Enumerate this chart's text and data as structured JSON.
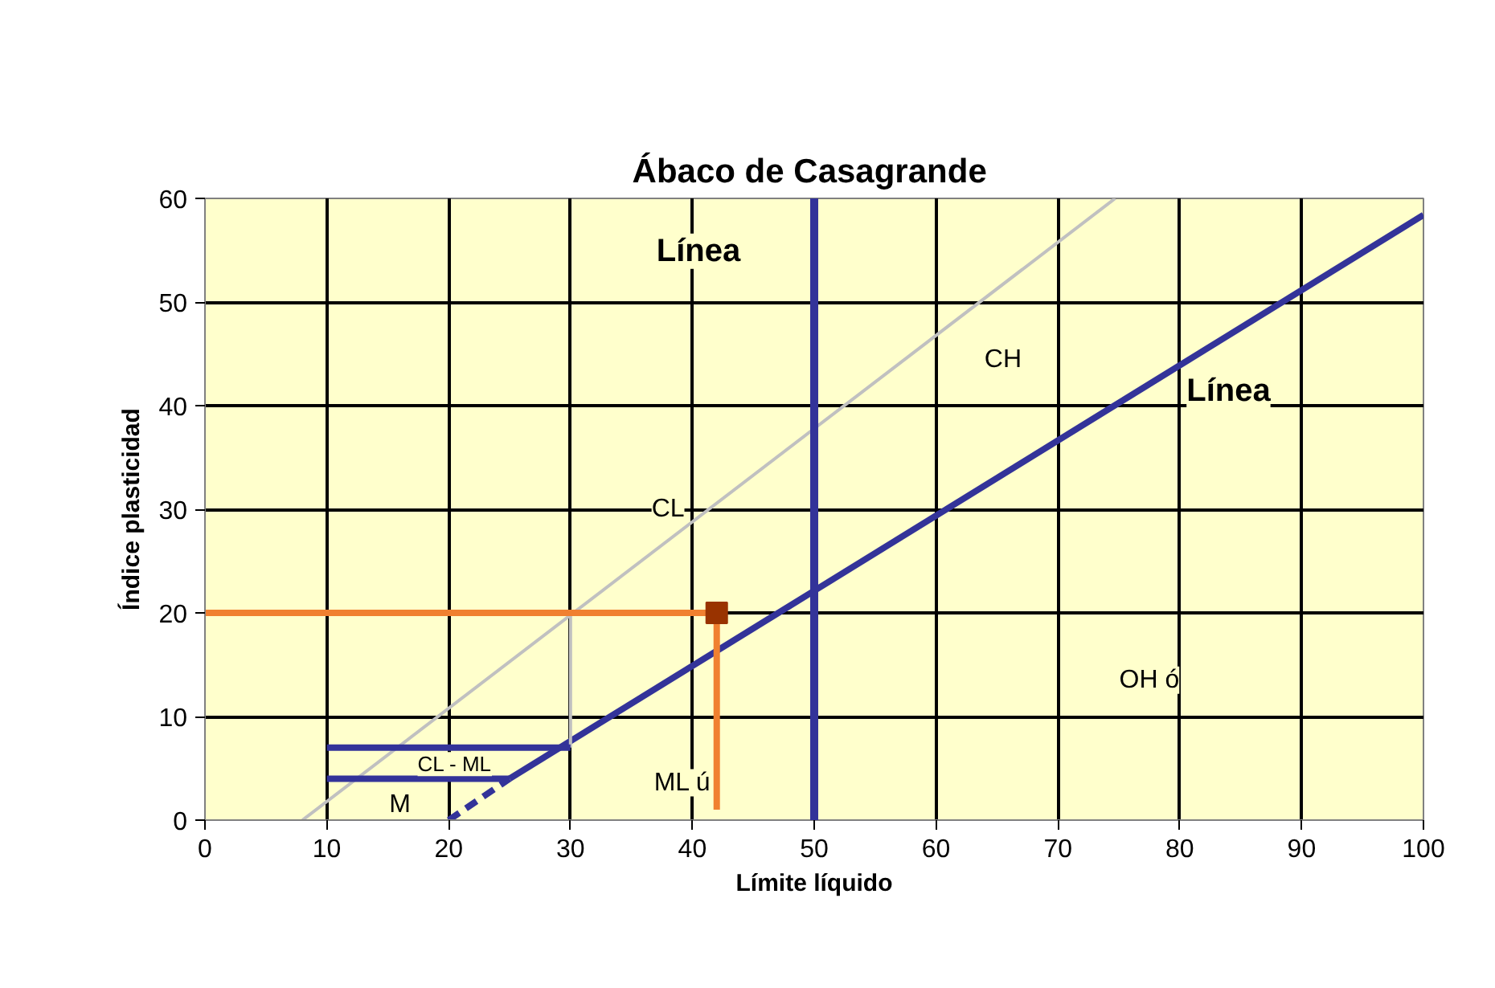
{
  "chart_data": {
    "type": "line",
    "title": "Ábaco  de Casagrande",
    "xlabel": "Límite líquido",
    "ylabel": "Índice plasticidad",
    "xlim": [
      0,
      100
    ],
    "ylim": [
      0,
      60
    ],
    "xticks": [
      0,
      10,
      20,
      30,
      40,
      50,
      60,
      70,
      80,
      90,
      100
    ],
    "yticks": [
      0,
      10,
      20,
      30,
      40,
      50,
      60
    ],
    "grid": true,
    "marker": "none",
    "line_style": "solid",
    "series": [
      {
        "color": "#333399",
        "x": [
          25,
          100
        ],
        "values": [
          4,
          58.4
        ]
      },
      {
        "color": "#333399",
        "x": [
          20,
          25
        ],
        "values": [
          0,
          4
        ],
        "line_style": "dashed"
      },
      {
        "color": "#c0c0c0",
        "x": [
          8,
          74.7
        ],
        "values": [
          0,
          60
        ]
      },
      {
        "color": "#c0c0c0",
        "x": [
          30,
          30
        ],
        "values": [
          7,
          20
        ]
      },
      {
        "color": "#333399",
        "x": [
          10,
          30
        ],
        "values": [
          7,
          7
        ]
      },
      {
        "color": "#333399",
        "x": [
          10,
          25
        ],
        "values": [
          4,
          4
        ]
      },
      {
        "color": "#f08030",
        "x": [
          0,
          42
        ],
        "values": [
          20,
          20
        ]
      },
      {
        "color": "#f08030",
        "x": [
          42,
          42
        ],
        "values": [
          20,
          1
        ]
      },
      {
        "type": "scatter",
        "marker": "square",
        "color": "#993300",
        "x": [
          42
        ],
        "values": [
          20
        ]
      }
    ],
    "ref_lines": [
      {
        "axis": "x",
        "value": 50,
        "label": null,
        "color": "#333399"
      }
    ],
    "annotations": [
      "Línea",
      "Línea",
      "CH",
      "CL",
      "CL - ML",
      "M",
      "ML ú",
      "OH ó"
    ]
  }
}
